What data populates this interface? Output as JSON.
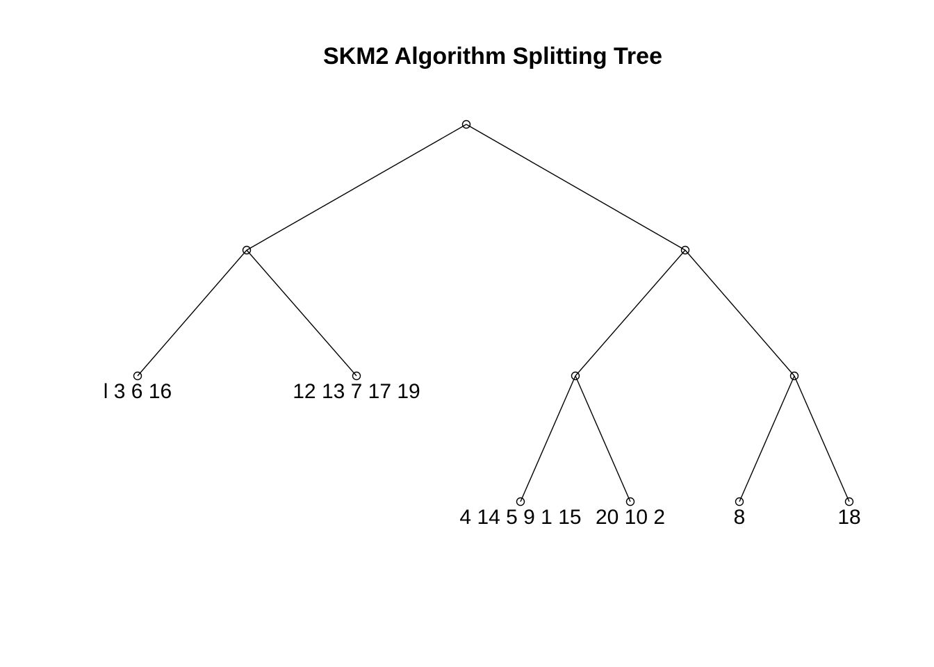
{
  "title": "SKM2 Algorithm Splitting Tree",
  "tree": {
    "nodes": [
      {
        "id": "root"
      },
      {
        "id": "n-left",
        "parent": "root"
      },
      {
        "id": "n-right",
        "parent": "root"
      },
      {
        "id": "leaf-a",
        "parent": "n-left",
        "label": "l 3 6 16"
      },
      {
        "id": "leaf-b",
        "parent": "n-left",
        "label": "12 13 7 17 19"
      },
      {
        "id": "n-rl",
        "parent": "n-right"
      },
      {
        "id": "n-rr",
        "parent": "n-right"
      },
      {
        "id": "leaf-c",
        "parent": "n-rl",
        "label": "4 14 5 9 1 15"
      },
      {
        "id": "leaf-d",
        "parent": "n-rl",
        "label": "20 10 2"
      },
      {
        "id": "leaf-e",
        "parent": "n-rr",
        "label": "8"
      },
      {
        "id": "leaf-f",
        "parent": "n-rr",
        "label": "18"
      }
    ]
  }
}
